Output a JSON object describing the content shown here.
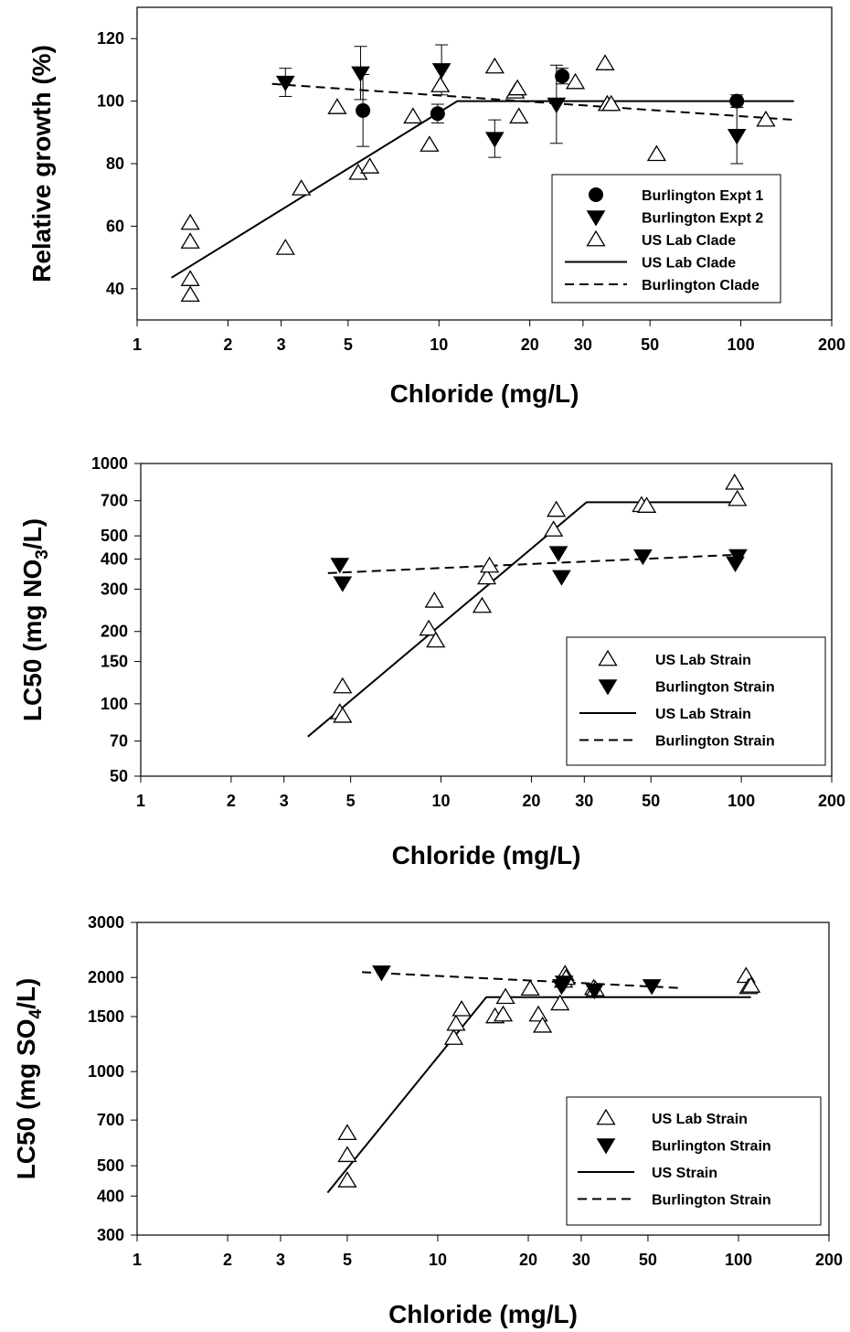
{
  "chart_data": [
    {
      "type": "scatter",
      "xlabel": "Chloride (mg/L)",
      "ylabel": "Relative growth (%)",
      "x_scale": "log",
      "y_scale": "linear",
      "xlim": [
        1,
        200
      ],
      "ylim": [
        30,
        130
      ],
      "x_ticks": [
        1,
        2,
        3,
        5,
        10,
        20,
        30,
        50,
        100,
        200
      ],
      "y_ticks": [
        40,
        60,
        80,
        100,
        120
      ],
      "x_tick_labels": [
        "1",
        "2",
        "3",
        "5",
        "10",
        "20",
        "30",
        "50",
        "100",
        "200"
      ],
      "y_tick_labels": [
        "40",
        "60",
        "80",
        "100",
        "120"
      ],
      "legend_position": "lower-right",
      "series": [
        {
          "name": "Burlington Expt 1",
          "kind": "points",
          "marker": "circle",
          "x": [
            5.6,
            9.9,
            25.6,
            97
          ],
          "y": [
            97,
            96,
            108,
            100
          ],
          "err": [
            11.5,
            3,
            2.5,
            2
          ]
        },
        {
          "name": "Burlington Expt 2",
          "kind": "points",
          "marker": "triangle-down",
          "x": [
            3.1,
            5.5,
            10.2,
            15.3,
            24.5,
            97
          ],
          "y": [
            106,
            109,
            110,
            88,
            99,
            89
          ],
          "err": [
            4.5,
            8.5,
            8,
            6,
            12.5,
            9
          ]
        },
        {
          "name": "US Lab Clade",
          "kind": "points",
          "marker": "triangle-up",
          "x": [
            1.5,
            1.5,
            1.5,
            1.5,
            3.1,
            3.5,
            4.6,
            5.4,
            5.9,
            8.2,
            9.3,
            10.1,
            15.3,
            17.9,
            18.2,
            18.4,
            28.3,
            35.5,
            36.1,
            37.2,
            52.6,
            121
          ],
          "y": [
            61,
            55,
            43,
            38,
            53,
            72,
            98,
            77,
            79,
            95,
            86,
            105,
            111,
            103,
            104,
            95,
            106,
            112,
            99,
            99,
            83,
            94
          ]
        },
        {
          "name": "US Lab Clade",
          "kind": "line",
          "style": "solid",
          "x": [
            1.3,
            11.5,
            150
          ],
          "y": [
            43.5,
            100,
            100
          ]
        },
        {
          "name": "Burlington Clade",
          "kind": "line",
          "style": "dashed",
          "x": [
            2.8,
            150
          ],
          "y": [
            105.5,
            94
          ]
        }
      ]
    },
    {
      "type": "scatter",
      "xlabel": "Chloride (mg/L)",
      "ylabel": "LC50 (mg NO3/L)",
      "ylabel_main": "LC50 (mg NO",
      "ylabel_sub": "3",
      "ylabel_end": "/L)",
      "x_scale": "log",
      "y_scale": "log",
      "xlim": [
        1,
        200
      ],
      "ylim": [
        50,
        1000
      ],
      "x_ticks": [
        1,
        2,
        3,
        5,
        10,
        20,
        30,
        50,
        100,
        200
      ],
      "y_ticks": [
        50,
        70,
        100,
        150,
        200,
        300,
        400,
        500,
        700,
        1000
      ],
      "x_tick_labels": [
        "1",
        "2",
        "3",
        "5",
        "10",
        "20",
        "30",
        "50",
        "100",
        "200"
      ],
      "y_tick_labels": [
        "50",
        "70",
        "100",
        "150",
        "200",
        "300",
        "400",
        "500",
        "700",
        "1000"
      ],
      "legend_position": "lower-right",
      "series": [
        {
          "name": "US Lab Strain",
          "kind": "points",
          "marker": "triangle-up",
          "x": [
            4.7,
            4.6,
            4.7,
            9.1,
            9.6,
            9.5,
            13.7,
            14.2,
            14.5,
            23.7,
            24.2,
            46.5,
            48.4,
            95,
            97
          ],
          "y": [
            118,
            92,
            89,
            205,
            183,
            268,
            255,
            335,
            375,
            530,
            640,
            670,
            665,
            830,
            710
          ],
          "group": 0
        },
        {
          "name": "Burlington Strain",
          "kind": "points",
          "marker": "triangle-down",
          "x": [
            4.6,
            4.7,
            24.6,
            25.2,
            47,
            95.5,
            97.5
          ],
          "y": [
            380,
            318,
            425,
            338,
            412,
            385,
            413
          ]
        },
        {
          "name": "US Lab Strain",
          "kind": "line",
          "style": "solid",
          "x": [
            3.6,
            30.5,
            100
          ],
          "y": [
            73,
            690,
            690
          ]
        },
        {
          "name": "Burlington Strain",
          "kind": "line",
          "style": "dashed",
          "x": [
            4.2,
            100
          ],
          "y": [
            350,
            418
          ]
        }
      ]
    },
    {
      "type": "scatter",
      "xlabel": "Chloride (mg/L)",
      "ylabel": "LC50 (mg SO4/L)",
      "ylabel_main": "LC50 (mg SO",
      "ylabel_sub": "4",
      "ylabel_end": "/L)",
      "x_scale": "log",
      "y_scale": "log",
      "xlim": [
        1,
        200
      ],
      "ylim": [
        300,
        3000
      ],
      "x_ticks": [
        1,
        2,
        3,
        5,
        10,
        20,
        30,
        50,
        100,
        200
      ],
      "y_ticks": [
        300,
        400,
        500,
        700,
        1000,
        1500,
        2000,
        3000
      ],
      "x_tick_labels": [
        "1",
        "2",
        "3",
        "5",
        "10",
        "20",
        "30",
        "50",
        "100",
        "200"
      ],
      "y_tick_labels": [
        "300",
        "400",
        "500",
        "700",
        "1000",
        "1500",
        "2000",
        "3000"
      ],
      "legend_position": "lower-right",
      "series": [
        {
          "name": "US Lab Strain",
          "kind": "points",
          "marker": "triangle-up",
          "x": [
            5,
            5,
            5,
            11.3,
            11.5,
            12,
            15.5,
            16.5,
            16.8,
            20.3,
            21.6,
            22.3,
            25.5,
            26.2,
            26.5,
            26.7,
            33,
            33.4,
            106,
            108,
            110
          ],
          "y": [
            635,
            540,
            448,
            1280,
            1420,
            1580,
            1500,
            1520,
            1730,
            1840,
            1520,
            1400,
            1650,
            1950,
            2050,
            1990,
            1850,
            1830,
            2020,
            1860,
            1880
          ]
        },
        {
          "name": "Burlington Strain",
          "kind": "points",
          "marker": "triangle-down",
          "x": [
            6.5,
            25.8,
            26.3,
            33.2,
            51.5
          ],
          "y": [
            2080,
            1880,
            1930,
            1820,
            1880
          ]
        },
        {
          "name": "US Strain",
          "kind": "line",
          "style": "solid",
          "x": [
            4.3,
            14.5,
            110
          ],
          "y": [
            410,
            1730,
            1730
          ]
        },
        {
          "name": "Burlington Strain",
          "kind": "line",
          "style": "dashed",
          "x": [
            5.6,
            65
          ],
          "y": [
            2080,
            1850
          ]
        }
      ]
    }
  ]
}
